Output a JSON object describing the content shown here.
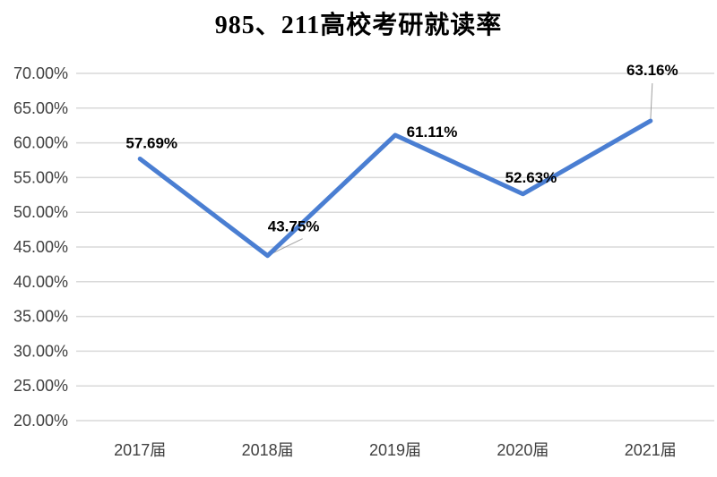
{
  "chart_data": {
    "type": "line",
    "title": "985、211高校考研就读率",
    "categories": [
      "2017届",
      "2018届",
      "2019届",
      "2020届",
      "2021届"
    ],
    "values": [
      57.69,
      43.75,
      61.11,
      52.63,
      63.16
    ],
    "data_labels": [
      "57.69%",
      "43.75%",
      "61.11%",
      "52.63%",
      "63.16%"
    ],
    "ytick_labels": [
      "70.00%",
      "65.00%",
      "60.00%",
      "55.00%",
      "50.00%",
      "45.00%",
      "40.00%",
      "35.00%",
      "30.00%",
      "25.00%",
      "20.00%"
    ],
    "ytick_values": [
      70,
      65,
      60,
      55,
      50,
      45,
      40,
      35,
      30,
      25,
      20
    ],
    "ylim": [
      20,
      70
    ],
    "ytick_step": 5,
    "xlabel": "",
    "ylabel": "",
    "grid": "horizontal",
    "legend": "none",
    "colors": {
      "line": "#4a7ed2",
      "gridline": "#d9d9d9",
      "axis_label": "#404040",
      "data_label": "#000000",
      "leader_line": "#a0a0a0",
      "background": "#ffffff"
    }
  }
}
